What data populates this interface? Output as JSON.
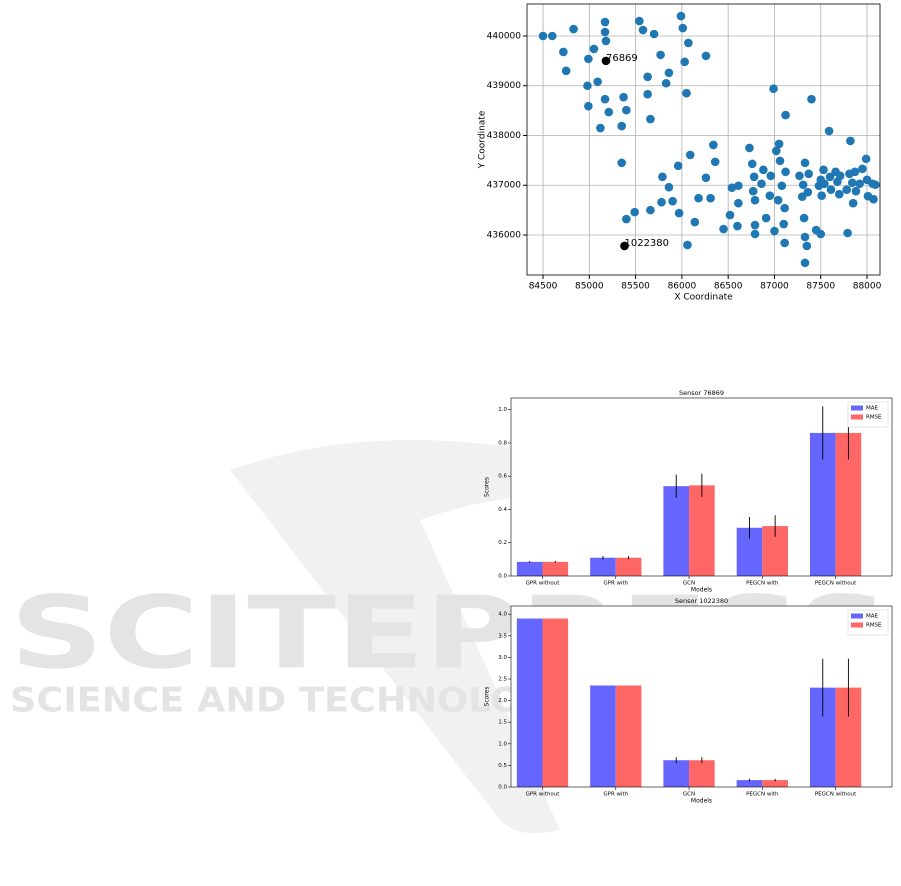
{
  "watermark": {
    "title": "SCITEPRESS",
    "subtitle": "SCIENCE AND TECHNOLOGY PUBLICATIONS"
  },
  "chart_data": [
    {
      "type": "scatter",
      "xlabel": "X Coordinate",
      "ylabel": "Y Coordinate",
      "color": "#1f77b4",
      "grid": true,
      "xlim": [
        84327,
        88140
      ],
      "ylim": [
        435196,
        440643
      ],
      "xticks": [
        84500,
        85000,
        85500,
        86000,
        86500,
        87000,
        87500,
        88000
      ],
      "yticks": [
        436000,
        437000,
        438000,
        439000,
        440000
      ],
      "x": [
        84500,
        84600,
        84720,
        84830,
        84750,
        84990,
        85050,
        85170,
        85170,
        85180,
        84980,
        85090,
        84990,
        85170,
        85210,
        85370,
        85400,
        85120,
        85350,
        85540,
        85580,
        85700,
        85990,
        86010,
        86070,
        85770,
        86030,
        86260,
        85630,
        85860,
        85830,
        85630,
        86050,
        85660,
        85350,
        85400,
        85490,
        85660,
        85790,
        85860,
        85780,
        85900,
        85960,
        85970,
        86090,
        86060,
        86140,
        86180,
        86260,
        86340,
        86360,
        86310,
        86450,
        86520,
        86540,
        86610,
        86610,
        86600,
        86730,
        86760,
        86780,
        86770,
        86790,
        86790,
        86790,
        86860,
        86880,
        86910,
        86950,
        86960,
        86990,
        87000,
        87020,
        87050,
        87060,
        87040,
        87080,
        87100,
        87120,
        87120,
        87110,
        87110,
        87270,
        87300,
        87310,
        87330,
        87320,
        87330,
        87350,
        87330,
        87360,
        87370,
        87400,
        87450,
        87480,
        87500,
        87500,
        87510,
        87530,
        87540,
        87590,
        87600,
        87610,
        87660,
        87680,
        87700,
        87710,
        87780,
        87790,
        87810,
        87820,
        87840,
        87850,
        87870,
        87880,
        87920,
        87950,
        87990,
        88000,
        88010,
        88060,
        88070,
        88090
      ],
      "values": [
        440000,
        440000,
        439680,
        440140,
        439300,
        439540,
        439740,
        440280,
        440080,
        439900,
        439000,
        439080,
        438590,
        438730,
        438470,
        438770,
        438510,
        438150,
        438190,
        440300,
        440120,
        440040,
        440400,
        440160,
        439860,
        439620,
        439480,
        439600,
        439180,
        439260,
        439050,
        438830,
        438850,
        438330,
        437450,
        436320,
        436460,
        436500,
        437170,
        436960,
        436660,
        436680,
        437390,
        436440,
        437610,
        435800,
        436260,
        436740,
        437150,
        437810,
        437470,
        436740,
        436120,
        436400,
        436950,
        436990,
        436640,
        436180,
        437750,
        437430,
        437170,
        436880,
        436700,
        436200,
        436020,
        437030,
        437310,
        436340,
        436790,
        437190,
        438940,
        436080,
        437690,
        437830,
        437490,
        436700,
        436990,
        436220,
        438410,
        437270,
        436540,
        435840,
        437190,
        436770,
        437010,
        437450,
        436340,
        435960,
        435780,
        435440,
        436860,
        437230,
        438730,
        436100,
        436990,
        437110,
        436020,
        436790,
        437310,
        437030,
        438090,
        437170,
        436910,
        437270,
        437070,
        436820,
        437190,
        436910,
        436040,
        437230,
        437890,
        437050,
        436640,
        437270,
        436880,
        437030,
        437330,
        437530,
        437110,
        436780,
        437030,
        436720,
        437010
      ],
      "annotations": [
        {
          "text": "76869",
          "x": 85180,
          "y": 439500,
          "color": "#000000"
        },
        {
          "text": "1022380",
          "x": 85380,
          "y": 435780,
          "color": "#000000"
        }
      ]
    },
    {
      "type": "bar",
      "title": "Sensor 76869",
      "xlabel": "Models",
      "ylabel": "Scores",
      "legend": "upper right",
      "categories": [
        "GPR without",
        "GPR with",
        "GCN",
        "PEGCN with",
        "PEGCN without"
      ],
      "ylim": [
        0,
        1.07
      ],
      "yticks": [
        {
          "value": 0,
          "label": "0.0"
        },
        0.2,
        0.4,
        0.6,
        0.8,
        {
          "value": 1,
          "label": "1.0"
        }
      ],
      "series": [
        {
          "name": "MAE",
          "color": "#6666ff",
          "values": [
            0.085,
            0.11,
            0.54,
            0.29,
            0.86
          ],
          "errors": [
            0.005,
            0.01,
            0.07,
            0.065,
            0.16
          ]
        },
        {
          "name": "RMSE",
          "color": "#ff6666",
          "values": [
            0.085,
            0.11,
            0.545,
            0.3,
            0.86
          ],
          "errors": [
            0.005,
            0.01,
            0.07,
            0.065,
            0.16
          ]
        }
      ]
    },
    {
      "type": "bar",
      "title": "Sensor 1022380",
      "xlabel": "Models",
      "ylabel": "Scores",
      "legend": "upper right",
      "categories": [
        "GPR without",
        "GPR with",
        "GCN",
        "PEGCN with",
        "PEGCN without"
      ],
      "ylim": [
        0,
        4.19
      ],
      "yticks": [
        {
          "value": 0,
          "label": "0.0"
        },
        0.5,
        {
          "value": 1,
          "label": "1.0"
        },
        1.5,
        {
          "value": 2,
          "label": "2.0"
        },
        2.5,
        {
          "value": 3,
          "label": "3.0"
        },
        3.5,
        {
          "value": 4,
          "label": "4.0"
        }
      ],
      "series": [
        {
          "name": "MAE",
          "color": "#6666ff",
          "values": [
            3.9,
            2.35,
            0.62,
            0.16,
            2.3
          ],
          "errors": [
            0,
            0,
            0.07,
            0.03,
            0.67
          ]
        },
        {
          "name": "RMSE",
          "color": "#ff6666",
          "values": [
            3.9,
            2.35,
            0.62,
            0.16,
            2.3
          ],
          "errors": [
            0,
            0,
            0.07,
            0.03,
            0.67
          ]
        }
      ]
    }
  ]
}
